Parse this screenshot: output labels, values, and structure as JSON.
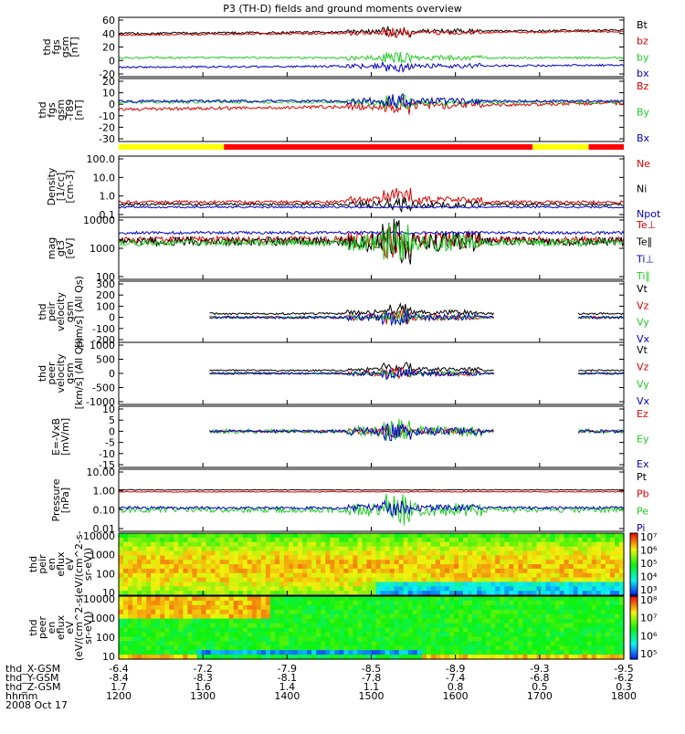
{
  "title": "P3 (TH-D) fields and ground moments overview",
  "colors": {
    "black": "#000000",
    "red": "#e00000",
    "green": "#22cc22",
    "blue": "#0000cc",
    "yellow": "#ffff00",
    "bar_red": "#ff0000"
  },
  "status_bar": {
    "segments": [
      {
        "from": "12:00",
        "to": "13:15",
        "color": "yellow"
      },
      {
        "from": "13:15",
        "to": "16:55",
        "color": "red"
      },
      {
        "from": "16:55",
        "to": "17:35",
        "color": "yellow"
      },
      {
        "from": "17:35",
        "to": "18:00",
        "color": "red"
      }
    ]
  },
  "x_axis": {
    "time_labels": [
      "1200",
      "1300",
      "1400",
      "1500",
      "1600",
      "1700",
      "1800"
    ],
    "rows": [
      {
        "label": "thd_X-GSM",
        "values": [
          "-6.4",
          "-7.2",
          "-7.9",
          "-8.5",
          "-8.9",
          "-9.3",
          "-9.5"
        ]
      },
      {
        "label": "thd_Y-GSM",
        "values": [
          "-8.4",
          "-8.3",
          "-8.1",
          "-7.8",
          "-7.4",
          "-6.8",
          "-6.2"
        ]
      },
      {
        "label": "thd_Z-GSM",
        "values": [
          "1.7",
          "1.6",
          "1.4",
          "1.1",
          "0.8",
          "0.5",
          "0.3"
        ]
      },
      {
        "label": "hhmm",
        "values": []
      }
    ],
    "date": "2008 Oct 17"
  },
  "chart_data": [
    {
      "type": "line",
      "ylabel": [
        "thd",
        "fgs",
        "gsm",
        "[nT]"
      ],
      "ylim": [
        -20,
        60
      ],
      "yticks": [
        "60",
        "40",
        "20",
        "0",
        "-20"
      ],
      "series": [
        {
          "name": "Bt",
          "color": "black"
        },
        {
          "name": "bz",
          "color": "red"
        },
        {
          "name": "by",
          "color": "green"
        },
        {
          "name": "bx",
          "color": "blue"
        }
      ]
    },
    {
      "type": "line",
      "ylabel": [
        "thd",
        "fgs",
        "gsm",
        "-T89",
        "[nT]"
      ],
      "ylim": [
        -35,
        20
      ],
      "yticks": [
        "20",
        "10",
        "0",
        "-10",
        "-20",
        "-30"
      ],
      "series": [
        {
          "name": "Bz",
          "color": "red"
        },
        {
          "name": "By",
          "color": "green"
        },
        {
          "name": "Bx",
          "color": "blue"
        }
      ]
    },
    {
      "type": "line",
      "log": true,
      "ylabel": [
        "Density",
        "[1/cc]",
        "[cm-3]"
      ],
      "yticks": [
        "100.0",
        "10.0",
        "1.0",
        "0.1"
      ],
      "series": [
        {
          "name": "Ne",
          "color": "red"
        },
        {
          "name": "Ni",
          "color": "black"
        },
        {
          "name": "Npot",
          "color": "blue"
        }
      ]
    },
    {
      "type": "line",
      "log": true,
      "ylabel": [
        "mag",
        "gt3",
        "[eV]"
      ],
      "yticks": [
        "10000",
        "1000",
        "100"
      ],
      "series": [
        {
          "name": "Te⊥",
          "color": "red"
        },
        {
          "name": "Te∥",
          "color": "black"
        },
        {
          "name": "Ti⊥",
          "color": "blue"
        },
        {
          "name": "Ti∥",
          "color": "green"
        }
      ]
    },
    {
      "type": "line",
      "ylabel": [
        "thd",
        "peir",
        "velocity",
        "gsm",
        "[km/s] (All Qs)"
      ],
      "ylim": [
        -200,
        300
      ],
      "yticks": [
        "300",
        "200",
        "100",
        "0",
        "-100",
        "-200"
      ],
      "series": [
        {
          "name": "Vt",
          "color": "black"
        },
        {
          "name": "Vz",
          "color": "red"
        },
        {
          "name": "Vy",
          "color": "green"
        },
        {
          "name": "Vx",
          "color": "blue"
        }
      ]
    },
    {
      "type": "line",
      "ylabel": [
        "thd",
        "peer",
        "velocity",
        "gsm",
        "[km/s] (All Qs)"
      ],
      "ylim": [
        -1000,
        1000
      ],
      "yticks": [
        "1000",
        "500",
        "0",
        "-500",
        "-1000"
      ],
      "series": [
        {
          "name": "Vt",
          "color": "black"
        },
        {
          "name": "Vz",
          "color": "red"
        },
        {
          "name": "Vy",
          "color": "green"
        },
        {
          "name": "Vx",
          "color": "blue"
        }
      ]
    },
    {
      "type": "line",
      "ylabel": [
        "E=-VxB",
        "[mV/m]"
      ],
      "ylim": [
        -15,
        10
      ],
      "yticks": [
        "10",
        "5",
        "0",
        "-5",
        "-10",
        "-15"
      ],
      "series": [
        {
          "name": "Ez",
          "color": "red"
        },
        {
          "name": "Ey",
          "color": "green"
        },
        {
          "name": "Ex",
          "color": "blue"
        }
      ]
    },
    {
      "type": "line",
      "log": true,
      "ylabel": [
        "Pressure",
        "[nPa]"
      ],
      "yticks": [
        "10.00",
        "1.00",
        "0.10",
        "0.01"
      ],
      "series": [
        {
          "name": "Pt",
          "color": "black"
        },
        {
          "name": "Pb",
          "color": "red"
        },
        {
          "name": "Pe",
          "color": "green"
        },
        {
          "name": "Pi",
          "color": "blue"
        }
      ]
    },
    {
      "type": "heatmap",
      "ylabel": [
        "thd",
        "peir",
        "en",
        "eflux",
        "eV",
        "(eV/(cm^2-s-",
        "sr-eV))"
      ],
      "yticks": [
        "10000",
        "1000",
        "100",
        "10"
      ],
      "colorbar": [
        "10⁷",
        "10⁶",
        "10⁵",
        "10⁴",
        "10³"
      ]
    },
    {
      "type": "heatmap",
      "ylabel": [
        "thd",
        "peer",
        "en",
        "eflux",
        "eV",
        "(eV/(cm^2-s-",
        "sr-eV))"
      ],
      "yticks": [
        "10000",
        "1000",
        "100",
        "10"
      ],
      "colorbar": [
        "10⁸",
        "10⁷",
        "10⁶",
        "10⁵"
      ]
    }
  ]
}
